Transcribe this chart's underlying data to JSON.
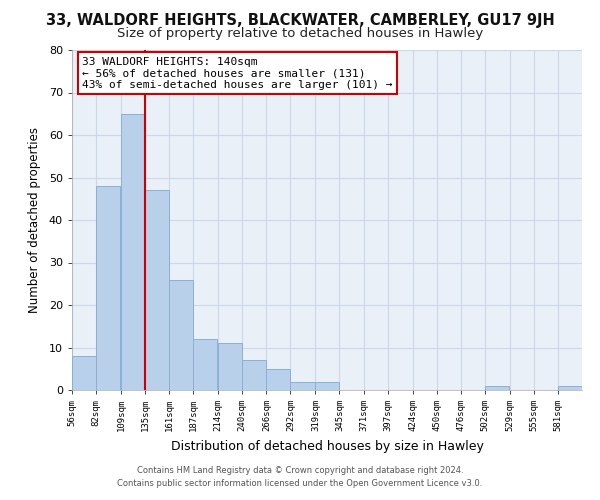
{
  "title": "33, WALDORF HEIGHTS, BLACKWATER, CAMBERLEY, GU17 9JH",
  "subtitle": "Size of property relative to detached houses in Hawley",
  "xlabel": "Distribution of detached houses by size in Hawley",
  "ylabel": "Number of detached properties",
  "bar_edges": [
    56,
    82,
    109,
    135,
    161,
    187,
    214,
    240,
    266,
    292,
    319,
    345,
    371,
    397,
    424,
    450,
    476,
    502,
    529,
    555,
    581
  ],
  "bar_heights": [
    8,
    48,
    65,
    47,
    26,
    12,
    11,
    7,
    5,
    2,
    2,
    0,
    0,
    0,
    0,
    0,
    0,
    1,
    0,
    0,
    1
  ],
  "bar_color": "#b8d0ea",
  "bar_edge_color": "#8ab0d8",
  "property_line_x": 135,
  "property_line_color": "#cc0000",
  "ylim": [
    0,
    80
  ],
  "yticks": [
    0,
    10,
    20,
    30,
    40,
    50,
    60,
    70,
    80
  ],
  "tick_labels": [
    "56sqm",
    "82sqm",
    "109sqm",
    "135sqm",
    "161sqm",
    "187sqm",
    "214sqm",
    "240sqm",
    "266sqm",
    "292sqm",
    "319sqm",
    "345sqm",
    "371sqm",
    "397sqm",
    "424sqm",
    "450sqm",
    "476sqm",
    "502sqm",
    "529sqm",
    "555sqm",
    "581sqm"
  ],
  "annotation_title": "33 WALDORF HEIGHTS: 140sqm",
  "annotation_line1": "← 56% of detached houses are smaller (131)",
  "annotation_line2": "43% of semi-detached houses are larger (101) →",
  "annotation_box_color": "#ffffff",
  "annotation_box_edge_color": "#cc0000",
  "footer_line1": "Contains HM Land Registry data © Crown copyright and database right 2024.",
  "footer_line2": "Contains public sector information licensed under the Open Government Licence v3.0.",
  "background_color": "#ffffff",
  "grid_color": "#ccd8e8",
  "title_fontsize": 10.5,
  "subtitle_fontsize": 9.5
}
